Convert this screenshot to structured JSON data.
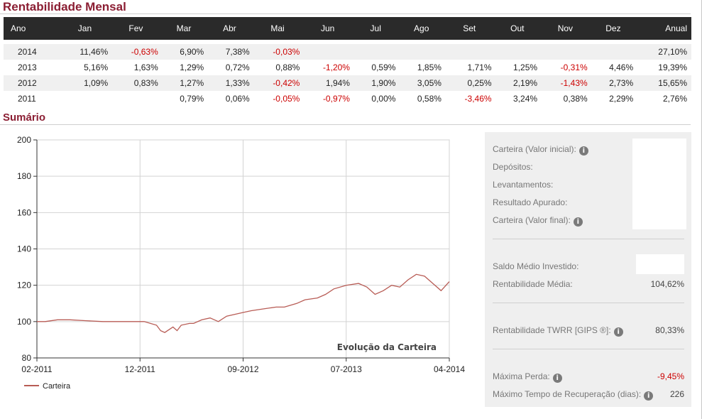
{
  "rentabilidade": {
    "title": "Rentabilidade Mensal",
    "headers": [
      "Ano",
      "Jan",
      "Fev",
      "Mar",
      "Abr",
      "Mai",
      "Jun",
      "Jul",
      "Ago",
      "Set",
      "Out",
      "Nov",
      "Dez",
      "Anual"
    ],
    "rows": [
      {
        "year": "2014",
        "cells": [
          "11,46%",
          "-0,63%",
          "6,90%",
          "7,38%",
          "-0,03%",
          "",
          "",
          "",
          "",
          "",
          "",
          "",
          "27,10%"
        ]
      },
      {
        "year": "2013",
        "cells": [
          "5,16%",
          "1,63%",
          "1,29%",
          "0,72%",
          "0,88%",
          "-1,20%",
          "0,59%",
          "1,85%",
          "1,71%",
          "1,25%",
          "-0,31%",
          "4,46%",
          "19,39%"
        ]
      },
      {
        "year": "2012",
        "cells": [
          "1,09%",
          "0,83%",
          "1,27%",
          "1,33%",
          "-0,42%",
          "1,94%",
          "1,90%",
          "3,05%",
          "0,25%",
          "2,19%",
          "-1,43%",
          "2,73%",
          "15,65%"
        ]
      },
      {
        "year": "2011",
        "cells": [
          "",
          "",
          "0,79%",
          "0,06%",
          "-0,05%",
          "-0,97%",
          "0,00%",
          "0,58%",
          "-3,46%",
          "3,24%",
          "0,38%",
          "2,29%",
          "2,76%"
        ]
      }
    ]
  },
  "sumario": {
    "title": "Sumário",
    "items": [
      {
        "label": "Carteira (Valor inicial):",
        "value": "",
        "info": true
      },
      {
        "label": "Depósitos:",
        "value": ""
      },
      {
        "label": "Levantamentos:",
        "value": ""
      },
      {
        "label": "Resultado Apurado:",
        "value": ""
      },
      {
        "label": "Carteira (Valor final):",
        "value": "",
        "info": true
      },
      {
        "label": "Saldo Médio Investido:",
        "value": ""
      },
      {
        "label": "Rentabilidade Média:",
        "value": "104,62%"
      },
      {
        "label": "Rentabilidade TWRR [GIPS ®]:",
        "value": "80,33%",
        "info": true
      },
      {
        "label": "Máxima Perda:",
        "value": "-9,45%",
        "info": true,
        "negative": true
      },
      {
        "label": "Máximo Tempo de Recuperação (dias):",
        "value": "226",
        "info": true
      }
    ]
  },
  "chart_data": {
    "type": "line",
    "title": "Evolução da Carteira",
    "x_ticks": [
      "02-2011",
      "12-2011",
      "09-2012",
      "07-2013",
      "04-2014"
    ],
    "ylim": [
      80,
      200
    ],
    "y_ticks": [
      80,
      100,
      120,
      140,
      160,
      180,
      200
    ],
    "grid": true,
    "legend": "bottom-left",
    "series": [
      {
        "name": "Carteira",
        "color": "#b85c55",
        "x": [
          0,
          0.02,
          0.05,
          0.08,
          0.12,
          0.16,
          0.2,
          0.26,
          0.29,
          0.3,
          0.31,
          0.33,
          0.34,
          0.35,
          0.37,
          0.38,
          0.4,
          0.42,
          0.44,
          0.46,
          0.48,
          0.5,
          0.52,
          0.55,
          0.58,
          0.6,
          0.63,
          0.65,
          0.68,
          0.7,
          0.72,
          0.75,
          0.78,
          0.8,
          0.82,
          0.84,
          0.86,
          0.88,
          0.9,
          0.92,
          0.94,
          0.96,
          0.98,
          1.0
        ],
        "y": [
          100,
          100,
          101,
          101,
          100.5,
          100,
          100,
          100,
          98,
          95,
          94,
          97,
          95,
          98,
          99,
          99,
          101,
          102,
          100,
          103,
          104,
          105,
          106,
          107,
          108,
          108,
          110,
          112,
          113,
          115,
          118,
          120,
          121,
          119,
          115,
          117,
          120,
          119,
          123,
          126,
          125,
          121,
          117,
          122
        ]
      }
    ]
  },
  "colors": {
    "accent": "#8b1e33",
    "header_bg": "#2a2a2a",
    "negative": "#cc0000",
    "line": "#b85c55"
  }
}
